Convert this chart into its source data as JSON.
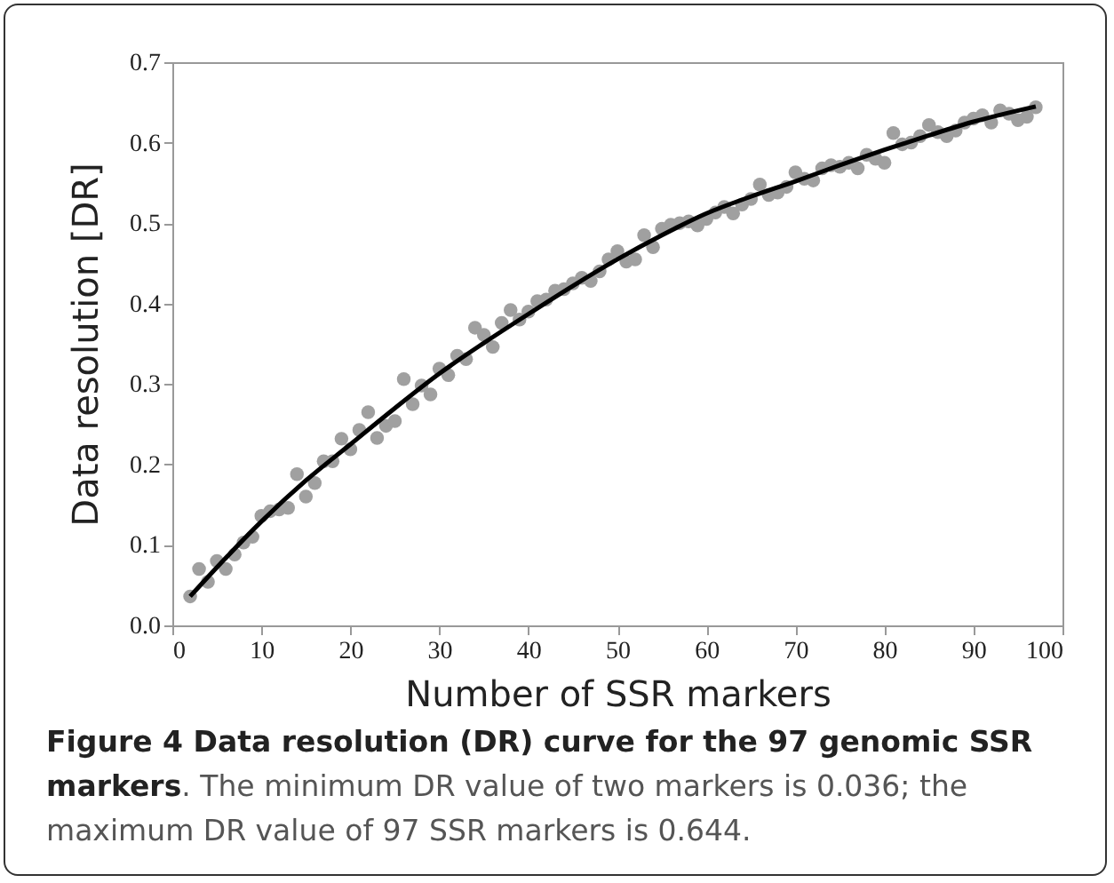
{
  "chart_data": {
    "type": "scatter",
    "title": "Figure 4 Data resolution (DR) curve for the 97 genomic SSR markers",
    "annotations": [
      ". The minimum DR value of two markers is 0.036; the maximum DR value of 97 SSR markers is 0.644."
    ],
    "xlabel": "Number of SSR markers",
    "ylabel": "Data resolution [DR]",
    "xlim": [
      0,
      100
    ],
    "ylim": [
      0,
      0.7
    ],
    "xticks": [
      0,
      10,
      20,
      30,
      40,
      50,
      60,
      70,
      80,
      90,
      100
    ],
    "yticks": [
      {
        "value": 0,
        "label": "0.0"
      },
      0.1,
      0.2,
      0.3,
      0.4,
      0.5,
      0.6,
      0.7
    ],
    "line_style": "solid",
    "x": [
      2,
      3,
      4,
      5,
      6,
      7,
      8,
      9,
      10,
      11,
      12,
      13,
      14,
      15,
      16,
      17,
      18,
      19,
      20,
      21,
      22,
      23,
      24,
      25,
      26,
      27,
      28,
      29,
      30,
      31,
      32,
      33,
      34,
      35,
      36,
      37,
      38,
      39,
      40,
      41,
      42,
      43,
      44,
      45,
      46,
      47,
      48,
      49,
      50,
      51,
      52,
      53,
      54,
      55,
      56,
      57,
      58,
      59,
      60,
      61,
      62,
      63,
      64,
      65,
      66,
      67,
      68,
      69,
      70,
      71,
      72,
      73,
      74,
      75,
      76,
      77,
      78,
      79,
      80,
      81,
      82,
      83,
      84,
      85,
      86,
      87,
      88,
      89,
      90,
      91,
      92,
      93,
      94,
      95,
      96,
      97
    ],
    "series": [
      {
        "color": "#a0a0a0",
        "marker": "circle",
        "values": [
          0.036,
          0.07,
          0.054,
          0.08,
          0.07,
          0.088,
          0.103,
          0.11,
          0.136,
          0.142,
          0.144,
          0.146,
          0.188,
          0.16,
          0.177,
          0.204,
          0.204,
          0.232,
          0.219,
          0.243,
          0.265,
          0.233,
          0.248,
          0.254,
          0.306,
          0.275,
          0.298,
          0.287,
          0.319,
          0.311,
          0.335,
          0.331,
          0.37,
          0.361,
          0.346,
          0.376,
          0.392,
          0.38,
          0.39,
          0.403,
          0.405,
          0.416,
          0.418,
          0.425,
          0.432,
          0.428,
          0.44,
          0.455,
          0.465,
          0.452,
          0.455,
          0.485,
          0.47,
          0.493,
          0.498,
          0.5,
          0.502,
          0.497,
          0.505,
          0.513,
          0.52,
          0.512,
          0.523,
          0.53,
          0.548,
          0.535,
          0.538,
          0.545,
          0.563,
          0.555,
          0.553,
          0.568,
          0.572,
          0.57,
          0.575,
          0.568,
          0.585,
          0.58,
          0.575,
          0.612,
          0.598,
          0.6,
          0.608,
          0.622,
          0.613,
          0.608,
          0.615,
          0.625,
          0.63,
          0.634,
          0.625,
          0.64,
          0.636,
          0.628,
          0.632,
          0.644
        ]
      },
      {
        "type": "line",
        "color": "#000000",
        "x": [
          2,
          5,
          10,
          15,
          20,
          25,
          30,
          35,
          40,
          45,
          50,
          55,
          60,
          65,
          70,
          75,
          80,
          85,
          90,
          97
        ],
        "values": [
          0.036,
          0.072,
          0.129,
          0.18,
          0.225,
          0.27,
          0.313,
          0.351,
          0.387,
          0.422,
          0.455,
          0.485,
          0.512,
          0.533,
          0.552,
          0.572,
          0.591,
          0.609,
          0.626,
          0.645
        ]
      }
    ]
  }
}
